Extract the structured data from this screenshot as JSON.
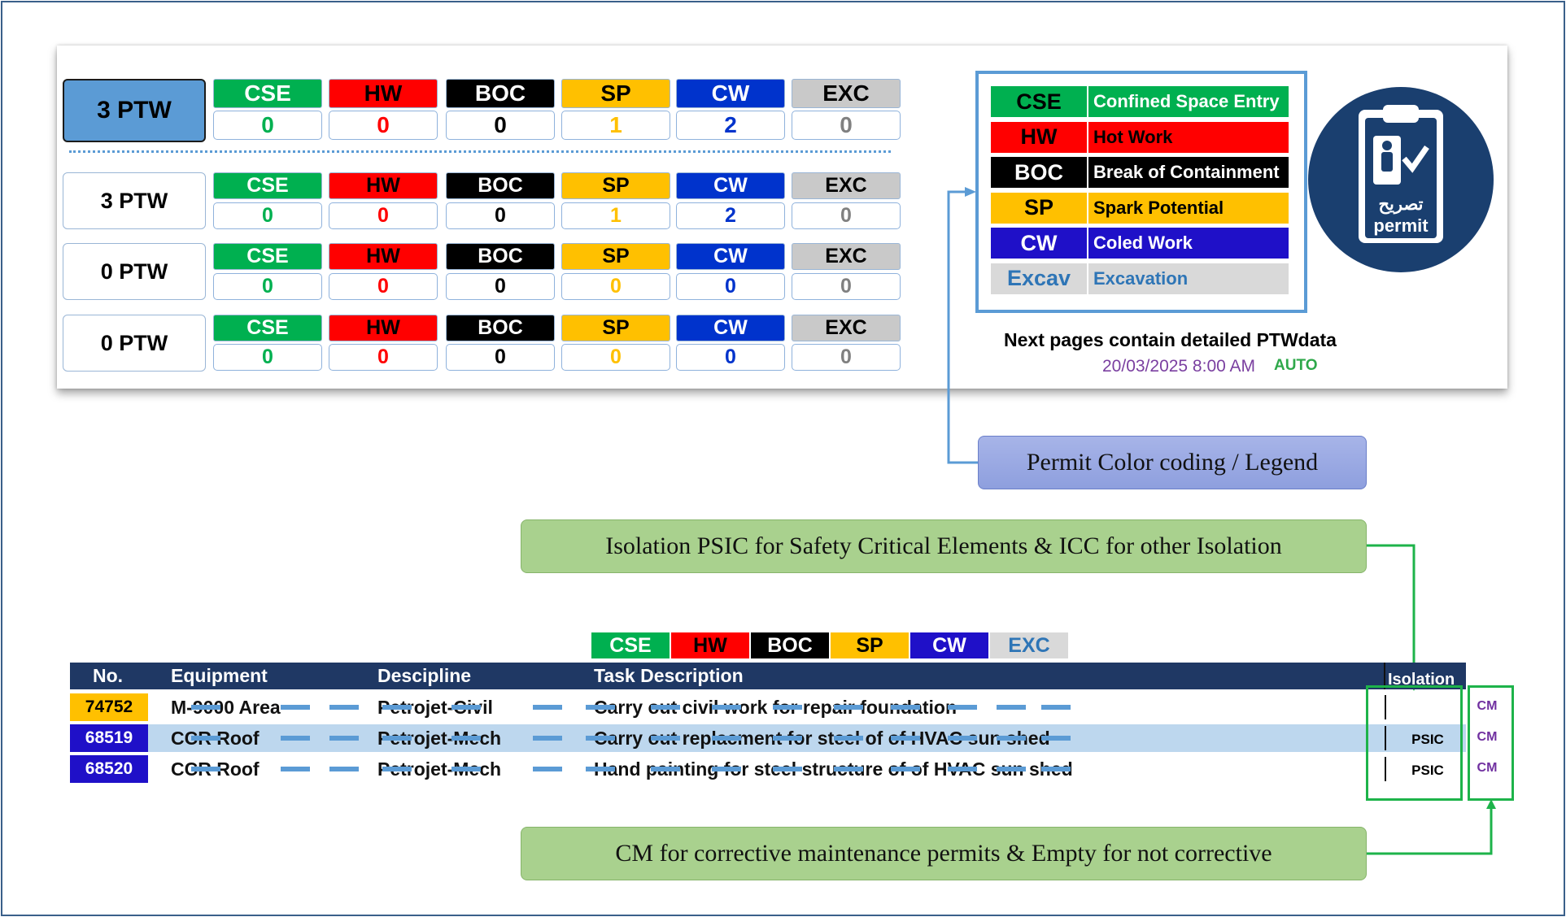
{
  "permit_types": [
    {
      "code": "CSE",
      "bg": "#00b050",
      "fg": "#ffffff",
      "val_color": "#00b050"
    },
    {
      "code": "HW",
      "bg": "#ff0000",
      "fg": "#000000",
      "val_color": "#ff0000"
    },
    {
      "code": "BOC",
      "bg": "#000000",
      "fg": "#ffffff",
      "val_color": "#000000"
    },
    {
      "code": "SP",
      "bg": "#ffc000",
      "fg": "#000000",
      "val_color": "#ffc000"
    },
    {
      "code": "CW",
      "bg": "#0033cc",
      "fg": "#ffffff",
      "val_color": "#0033cc"
    },
    {
      "code": "EXC",
      "bg": "#c9c9c9",
      "fg": "#000000",
      "val_color": "#808080"
    }
  ],
  "summary": {
    "main": {
      "label": "3 PTW",
      "values": [
        "0",
        "0",
        "0",
        "1",
        "2",
        "0"
      ]
    },
    "rows": [
      {
        "label": "3 PTW",
        "values": [
          "0",
          "0",
          "0",
          "1",
          "2",
          "0"
        ]
      },
      {
        "label": "0 PTW",
        "values": [
          "0",
          "0",
          "0",
          "0",
          "0",
          "0"
        ]
      },
      {
        "label": "0 PTW",
        "values": [
          "0",
          "0",
          "0",
          "0",
          "0",
          "0"
        ]
      }
    ]
  },
  "legend": [
    {
      "code": "CSE",
      "name": "Confined Space Entry",
      "bg": "#00b050",
      "code_fg": "#000000",
      "name_fg": "#ffffff"
    },
    {
      "code": "HW",
      "name": "Hot Work",
      "bg": "#ff0000",
      "code_fg": "#000000",
      "name_fg": "#000000"
    },
    {
      "code": "BOC",
      "name": "Break of Containment",
      "bg": "#000000",
      "code_fg": "#ffffff",
      "name_fg": "#ffffff"
    },
    {
      "code": "SP",
      "name": "Spark Potential",
      "bg": "#ffc000",
      "code_fg": "#000000",
      "name_fg": "#000000"
    },
    {
      "code": "CW",
      "name": "Coled Work",
      "bg": "#1f10c8",
      "code_fg": "#ffffff",
      "name_fg": "#ffffff"
    },
    {
      "code": "Excav",
      "name": "Excavation",
      "bg": "#d9d9d9",
      "code_fg": "#2e75b6",
      "name_fg": "#2e75b6"
    }
  ],
  "badge": {
    "arabic": "تصريح",
    "text": "permit"
  },
  "info": {
    "next": "Next pages contain detailed PTWdata",
    "datetime": "20/03/2025 8:00 AM",
    "mode": "AUTO"
  },
  "callouts": {
    "legend": "Permit Color coding / Legend",
    "isolation": "Isolation PSIC for Safety Critical Elements & ICC for other Isolation",
    "cm": "CM for corrective maintenance permits & Empty for not corrective"
  },
  "mini_legend": [
    {
      "code": "CSE",
      "bg": "#00b050",
      "fg": "#ffffff"
    },
    {
      "code": "HW",
      "bg": "#ff0000",
      "fg": "#000000"
    },
    {
      "code": "BOC",
      "bg": "#000000",
      "fg": "#ffffff"
    },
    {
      "code": "SP",
      "bg": "#ffc000",
      "fg": "#000000"
    },
    {
      "code": "CW",
      "bg": "#1f10c8",
      "fg": "#ffffff"
    },
    {
      "code": "EXC",
      "bg": "#d9d9d9",
      "fg": "#2e75b6"
    }
  ],
  "table": {
    "headers": {
      "no": "No.",
      "equipment": "Equipment",
      "discipline": "Descipline",
      "task": "Task Description",
      "isolation": "Isolation"
    },
    "rows": [
      {
        "no": "74752",
        "no_bg": "#ffc000",
        "no_fg": "#000000",
        "equipment": "M-9000 Area",
        "discipline": "Petrojet-Civil",
        "task": "Carry out civil work for repair foundation",
        "isolation": "",
        "cm": "CM",
        "highlight": false
      },
      {
        "no": "68519",
        "no_bg": "#1f10c8",
        "no_fg": "#ffffff",
        "equipment": "CCR Roof",
        "discipline": "Petrojet-Mech",
        "task": "Carry out replacment for steel  of of HVAC sun shed",
        "isolation": "PSIC",
        "cm": "CM",
        "highlight": true
      },
      {
        "no": "68520",
        "no_bg": "#1f10c8",
        "no_fg": "#ffffff",
        "equipment": "CCR Roof",
        "discipline": "Petrojet-Mech",
        "task": "Hand painting for steel structure of of HVAC sun shed",
        "isolation": "PSIC",
        "cm": "CM",
        "highlight": false
      }
    ]
  }
}
